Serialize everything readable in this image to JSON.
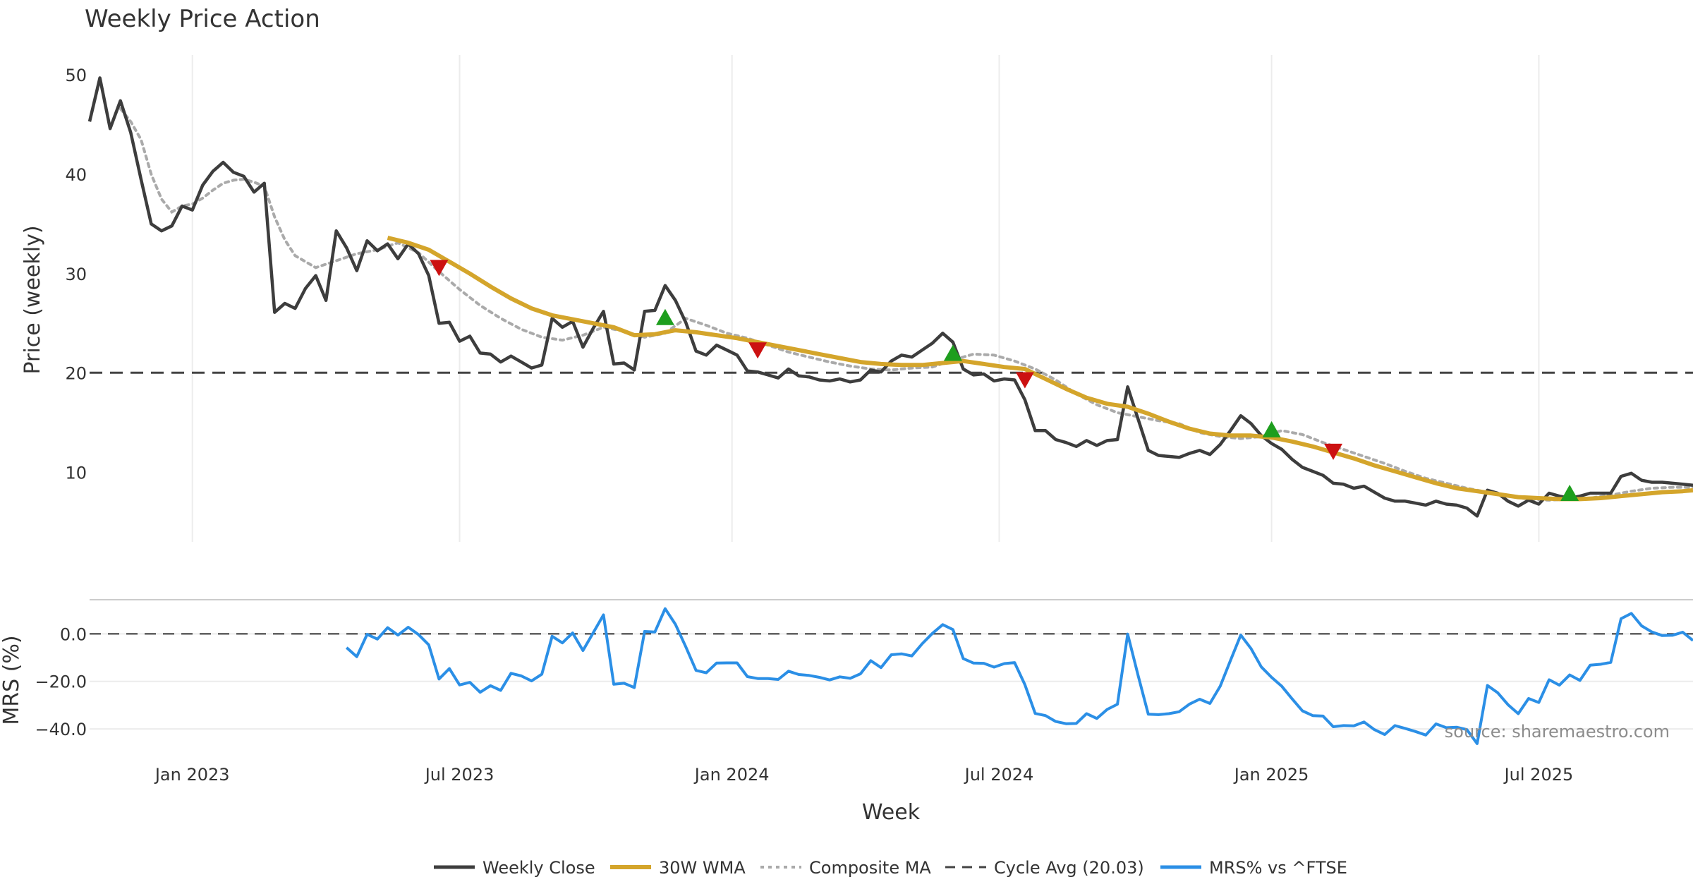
{
  "colors": {
    "close": "#3d3d3d",
    "wma": "#d4a52b",
    "composite": "#aaaaaa",
    "cycle": "#444444",
    "mrs": "#2b8fe6",
    "buy": "#1e9e1e",
    "sell": "#cc1111",
    "grid": "#ececec"
  },
  "chart_data": {
    "type": "line",
    "title": "Weekly Price Action",
    "xlabel": "Week",
    "source": "source: sharemaestro.com",
    "x_ticks": [
      "Jan 2023",
      "Jul 2023",
      "Jan 2024",
      "Jul 2024",
      "Jan 2025",
      "Jul 2025"
    ],
    "x_tick_weeks": [
      10,
      36,
      62.5,
      88.5,
      115,
      141
    ],
    "x_range": [
      0,
      156
    ],
    "price_panel": {
      "ylabel": "Price (weekly)",
      "ylim": [
        3,
        52
      ],
      "y_ticks": [
        10,
        20,
        30,
        40,
        50
      ],
      "cycle_avg": 20.03
    },
    "mrs_panel": {
      "ylabel": "MRS (%)",
      "ylim": [
        -48,
        12
      ],
      "y_ticks": [
        0.0,
        -20.0,
        -40.0
      ],
      "y_tick_labels": [
        "0.0",
        "−20.0",
        "−40.0"
      ],
      "zero_line": 0
    },
    "legend": [
      {
        "label": "Weekly Close",
        "series": "close"
      },
      {
        "label": "30W WMA",
        "series": "wma"
      },
      {
        "label": "Composite MA",
        "series": "composite"
      },
      {
        "label": "Cycle Avg (20.03)",
        "series": "cycle"
      },
      {
        "label": "MRS% vs ^FTSE",
        "series": "mrs"
      }
    ],
    "series": [
      {
        "name": "Weekly Close",
        "key": "close",
        "x": [
          0,
          1,
          2,
          3,
          4,
          5,
          6,
          7,
          8,
          9,
          10,
          11,
          12,
          13,
          14,
          15,
          16,
          17,
          18,
          19,
          20,
          21,
          22,
          23,
          24,
          25,
          26,
          27,
          28,
          29,
          30,
          31,
          32,
          33,
          34,
          35,
          36,
          37,
          38,
          39,
          40,
          41,
          42,
          43,
          44,
          45,
          46,
          47,
          48,
          49,
          50,
          51,
          52,
          53,
          54,
          55,
          56,
          57,
          58,
          59,
          60,
          61,
          62,
          63,
          64,
          65,
          66,
          67,
          68,
          69,
          70,
          71,
          72,
          73,
          74,
          75,
          76,
          77,
          78,
          79,
          80,
          81,
          82,
          83,
          84,
          85,
          86,
          87,
          88,
          89,
          90,
          91,
          92,
          93,
          94,
          95,
          96,
          97,
          98,
          99,
          100,
          101,
          102,
          103,
          104,
          105,
          106,
          107,
          108,
          109,
          110,
          111,
          112,
          113,
          114,
          115,
          116,
          117,
          118,
          119,
          120,
          121,
          122,
          123,
          124,
          125,
          126,
          127,
          128,
          129,
          130,
          131,
          132,
          133,
          134,
          135,
          136,
          137,
          138,
          139,
          140,
          141,
          142,
          143,
          144,
          145,
          146,
          147,
          148,
          149,
          150,
          151,
          152,
          153,
          154,
          155,
          156
        ],
        "y": [
          45.3,
          49.7,
          44.6,
          47.4,
          44.2,
          39.5,
          35.0,
          34.3,
          34.8,
          36.8,
          36.4,
          38.9,
          40.3,
          41.2,
          40.2,
          39.8,
          38.2,
          39.1,
          26.1,
          27.0,
          26.5,
          28.5,
          29.8,
          27.3,
          34.3,
          32.6,
          30.3,
          33.3,
          32.3,
          33.0,
          31.5,
          33.0,
          32.0,
          29.8,
          25.0,
          25.1,
          23.2,
          23.7,
          22.0,
          21.9,
          21.1,
          21.7,
          21.1,
          20.5,
          20.8,
          25.5,
          24.6,
          25.2,
          22.6,
          24.5,
          26.2,
          20.9,
          21.0,
          20.3,
          26.2,
          26.3,
          28.8,
          27.3,
          25.1,
          22.2,
          21.8,
          22.8,
          22.3,
          21.8,
          20.2,
          20.1,
          19.8,
          19.5,
          20.4,
          19.7,
          19.6,
          19.3,
          19.2,
          19.4,
          19.1,
          19.3,
          20.3,
          20.1,
          21.2,
          21.8,
          21.6,
          22.3,
          23.0,
          24.0,
          23.1,
          20.4,
          19.8,
          19.9,
          19.2,
          19.4,
          19.3,
          17.3,
          14.2,
          14.2,
          13.3,
          13.0,
          12.6,
          13.2,
          12.7,
          13.2,
          13.3,
          18.6,
          15.4,
          12.2,
          11.7,
          11.6,
          11.5,
          11.9,
          12.2,
          11.8,
          12.8,
          14.2,
          15.7,
          14.9,
          13.7,
          12.9,
          12.3,
          11.3,
          10.5,
          10.1,
          9.7,
          8.9,
          8.8,
          8.4,
          8.6,
          8.0,
          7.4,
          7.1,
          7.1,
          6.9,
          6.7,
          7.1,
          6.8,
          6.7,
          6.4,
          5.6,
          8.2,
          7.9,
          7.1,
          6.6,
          7.2,
          6.8,
          7.9,
          7.6,
          7.4,
          7.6,
          7.9,
          7.9,
          7.9,
          9.6,
          9.9,
          9.2,
          9.0,
          9.0,
          8.9,
          8.8,
          8.7
        ]
      },
      {
        "name": "30W WMA",
        "key": "wma",
        "x": [
          29,
          31,
          33,
          35,
          37,
          39,
          41,
          43,
          45,
          47,
          49,
          51,
          53,
          55,
          57,
          59,
          61,
          63,
          65,
          67,
          69,
          71,
          73,
          75,
          77,
          79,
          81,
          83,
          85,
          87,
          89,
          91,
          93,
          95,
          97,
          99,
          101,
          103,
          105,
          107,
          109,
          111,
          113,
          115,
          117,
          119,
          121,
          123,
          125,
          127,
          129,
          131,
          133,
          135,
          137,
          139,
          141,
          143,
          145,
          147,
          149,
          151,
          153,
          155,
          156
        ],
        "y": [
          33.6,
          33.1,
          32.4,
          31.2,
          30.0,
          28.7,
          27.5,
          26.5,
          25.8,
          25.4,
          25.0,
          24.6,
          23.8,
          23.9,
          24.3,
          24.1,
          23.8,
          23.5,
          23.1,
          22.7,
          22.3,
          21.9,
          21.5,
          21.1,
          20.9,
          20.8,
          20.8,
          21.0,
          21.2,
          20.9,
          20.6,
          20.4,
          19.4,
          18.4,
          17.5,
          16.9,
          16.6,
          15.9,
          15.1,
          14.4,
          13.9,
          13.7,
          13.7,
          13.5,
          13.1,
          12.6,
          12.0,
          11.4,
          10.7,
          10.1,
          9.5,
          8.9,
          8.4,
          8.1,
          7.8,
          7.5,
          7.4,
          7.3,
          7.3,
          7.4,
          7.6,
          7.8,
          8.0,
          8.1,
          8.2
        ]
      },
      {
        "name": "Composite MA",
        "key": "composite",
        "x": [
          3,
          4,
          5,
          6,
          7,
          8,
          9,
          10,
          11,
          12,
          13,
          14,
          15,
          16,
          17,
          18,
          19,
          20,
          22,
          24,
          26,
          28,
          30,
          32,
          34,
          36,
          38,
          40,
          42,
          44,
          46,
          48,
          50,
          52,
          54,
          56,
          58,
          60,
          62,
          64,
          66,
          68,
          70,
          72,
          74,
          76,
          78,
          80,
          82,
          84,
          86,
          88,
          90,
          92,
          94,
          96,
          98,
          100,
          102,
          104,
          106,
          108,
          110,
          112,
          114,
          116,
          118,
          120,
          122,
          124,
          126,
          128,
          130,
          132,
          134,
          136,
          138,
          140,
          142,
          144,
          146,
          148,
          150,
          152,
          154,
          156
        ],
        "y": [
          46.6,
          45.3,
          43.5,
          40.0,
          37.5,
          36.2,
          36.8,
          37.0,
          37.6,
          38.4,
          39.1,
          39.4,
          39.5,
          39.2,
          38.8,
          35.7,
          33.4,
          31.8,
          30.6,
          31.3,
          32.0,
          32.4,
          33.1,
          32.1,
          30.2,
          28.4,
          26.8,
          25.5,
          24.4,
          23.6,
          23.3,
          23.8,
          24.6,
          24.2,
          23.6,
          24.0,
          25.5,
          24.8,
          24.0,
          23.5,
          22.8,
          22.1,
          21.6,
          21.1,
          20.7,
          20.4,
          20.3,
          20.5,
          20.6,
          21.3,
          21.9,
          21.8,
          21.2,
          20.4,
          19.3,
          17.9,
          16.8,
          16.0,
          15.6,
          15.2,
          14.9,
          14.0,
          13.6,
          13.4,
          13.6,
          14.2,
          13.8,
          13.0,
          12.3,
          11.6,
          10.9,
          10.1,
          9.4,
          8.9,
          8.4,
          8.0,
          7.6,
          7.3,
          7.2,
          7.3,
          7.4,
          7.7,
          8.1,
          8.4,
          8.5,
          8.5
        ]
      },
      {
        "name": "MRS% vs ^FTSE",
        "key": "mrs",
        "x": [
          25,
          26,
          27,
          28,
          29,
          30,
          31,
          32,
          33,
          34,
          35,
          36,
          37,
          38,
          39,
          40,
          41,
          42,
          43,
          44,
          45,
          46,
          47,
          48,
          49,
          50,
          51,
          52,
          53,
          54,
          55,
          56,
          57,
          58,
          59,
          60,
          61,
          62,
          63,
          64,
          65,
          66,
          67,
          68,
          69,
          70,
          71,
          72,
          73,
          74,
          75,
          76,
          77,
          78,
          79,
          80,
          81,
          82,
          83,
          84,
          85,
          86,
          87,
          88,
          89,
          90,
          91,
          92,
          93,
          94,
          95,
          96,
          97,
          98,
          99,
          100,
          101,
          102,
          103,
          104,
          105,
          106,
          107,
          108,
          109,
          110,
          111,
          112,
          113,
          114,
          115,
          116,
          117,
          118,
          119,
          120,
          121,
          122,
          123,
          124,
          125,
          126,
          127,
          128,
          129,
          130,
          131,
          132,
          133,
          134,
          135,
          136,
          137,
          138,
          139,
          140,
          141,
          142,
          143,
          144,
          145,
          146,
          147,
          148,
          149,
          150,
          151,
          152,
          153,
          154,
          155,
          156
        ],
        "y": [
          -5.8,
          -9.6,
          -0.2,
          -2.2,
          2.6,
          -0.5,
          2.8,
          -0.3,
          -4.6,
          -19.0,
          -14.6,
          -21.5,
          -20.4,
          -24.6,
          -21.8,
          -23.8,
          -16.6,
          -17.7,
          -19.8,
          -17.0,
          -1.0,
          -3.8,
          0.4,
          -7.0,
          0.5,
          8.0,
          -21.2,
          -20.8,
          -22.6,
          1.0,
          0.8,
          10.6,
          4.0,
          -5.4,
          -15.4,
          -16.4,
          -12.3,
          -12.2,
          -12.2,
          -18.0,
          -18.8,
          -18.8,
          -19.2,
          -15.7,
          -17.1,
          -17.5,
          -18.3,
          -19.4,
          -18.1,
          -18.7,
          -16.8,
          -11.3,
          -14.2,
          -8.8,
          -8.4,
          -9.3,
          -4.2,
          0.2,
          3.9,
          1.8,
          -10.4,
          -12.3,
          -12.4,
          -14.0,
          -12.5,
          -12.1,
          -21.4,
          -33.5,
          -34.4,
          -36.9,
          -37.8,
          -37.7,
          -33.6,
          -35.6,
          -31.8,
          -29.6,
          -0.1,
          -17.3,
          -33.8,
          -34.0,
          -33.6,
          -32.8,
          -29.6,
          -27.5,
          -29.3,
          -22.0,
          -11.2,
          -0.5,
          -6.2,
          -13.9,
          -18.3,
          -22.1,
          -27.4,
          -32.4,
          -34.4,
          -34.6,
          -39.1,
          -38.6,
          -38.7,
          -37.1,
          -40.3,
          -42.4,
          -38.6,
          -39.8,
          -41.1,
          -42.6,
          -37.9,
          -39.5,
          -39.3,
          -40.3,
          -46.2,
          -21.7,
          -24.8,
          -29.8,
          -33.6,
          -27.2,
          -28.9,
          -19.3,
          -21.6,
          -17.3,
          -19.6,
          -13.2,
          -12.8,
          -12.0,
          6.4,
          8.6,
          3.4,
          0.8,
          -0.7,
          -0.6,
          0.7,
          -2.8
        ]
      }
    ],
    "signals": {
      "buy": [
        {
          "x": 56,
          "y": 25.6
        },
        {
          "x": 84,
          "y": 22.0
        },
        {
          "x": 115,
          "y": 14.3
        },
        {
          "x": 144,
          "y": 7.9
        }
      ],
      "sell": [
        {
          "x": 34,
          "y": 30.6
        },
        {
          "x": 65,
          "y": 22.3
        },
        {
          "x": 91,
          "y": 19.3
        },
        {
          "x": 121,
          "y": 12.1
        }
      ]
    }
  }
}
